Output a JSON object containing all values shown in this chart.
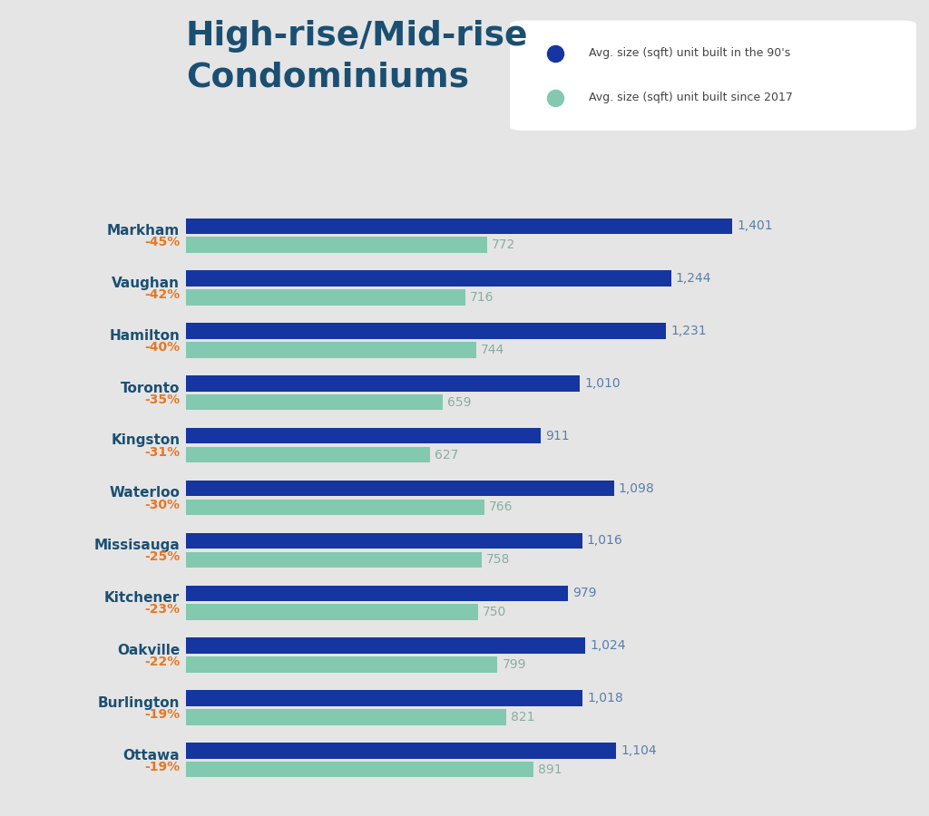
{
  "title_line1": "High-rise/Mid-rise",
  "title_line2": "Condominiums",
  "title_color": "#1b4f72",
  "background_color": "#e5e5e5",
  "bar_color_90s": "#1535a0",
  "bar_color_2017": "#82c9b0",
  "value_color_90s": "#5a7fa8",
  "value_color_2017": "#8aada0",
  "legend_label_90s": "Avg. size (sqft) unit built in the 90's",
  "legend_label_2017": "Avg. size (sqft) unit built since 2017",
  "categories": [
    "Markham",
    "Vaughan",
    "Hamilton",
    "Toronto",
    "Kingston",
    "Waterloo",
    "Missisauga",
    "Kitchener",
    "Oakville",
    "Burlington",
    "Ottawa"
  ],
  "pct_changes": [
    "-45%",
    "-42%",
    "-40%",
    "-35%",
    "-31%",
    "-30%",
    "-25%",
    "-23%",
    "-22%",
    "-19%",
    "-19%"
  ],
  "values_90s": [
    1401,
    1244,
    1231,
    1010,
    911,
    1098,
    1016,
    979,
    1024,
    1018,
    1104
  ],
  "values_2017": [
    772,
    716,
    744,
    659,
    627,
    766,
    758,
    750,
    799,
    821,
    891
  ]
}
